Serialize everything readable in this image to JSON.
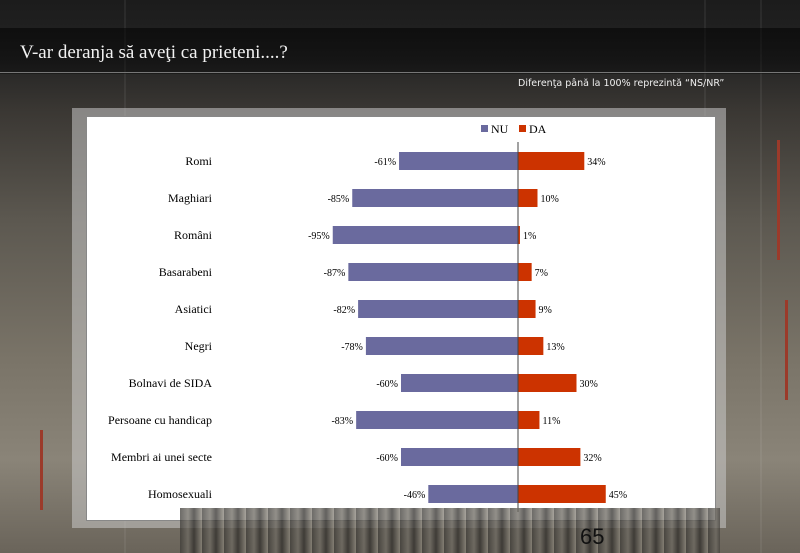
{
  "slide": {
    "title": "V-ar deranja să aveţi ca prieteni....?",
    "note": "Diferenţa până la 100% reprezintă  “NS/NR”",
    "page_number": "65"
  },
  "colors": {
    "nu": "#6a6a9e",
    "da": "#cc3300"
  },
  "chart_data": {
    "type": "bar",
    "orientation": "horizontal-diverging",
    "categories": [
      "Romi",
      "Maghiari",
      "Români",
      "Basarabeni",
      "Asiatici",
      "Negri",
      "Bolnavi de SIDA",
      "Persoane cu handicap",
      "Membri ai unei secte",
      "Homosexuali"
    ],
    "series": [
      {
        "name": "NU",
        "values": [
          -61,
          -85,
          -95,
          -87,
          -82,
          -78,
          -60,
          -83,
          -60,
          -46
        ]
      },
      {
        "name": "DA",
        "values": [
          34,
          10,
          1,
          7,
          9,
          13,
          30,
          11,
          32,
          45
        ]
      }
    ],
    "data_labels": {
      "NU": [
        "-61%",
        "-85%",
        "-95%",
        "-87%",
        "-82%",
        "-78%",
        "-60%",
        "-83%",
        "-60%",
        "-46%"
      ],
      "DA": [
        "34%",
        "10%",
        "1%",
        "7%",
        "9%",
        "13%",
        "30%",
        "11%",
        "32%",
        "45%"
      ]
    },
    "legend_position": "top",
    "grid": false
  }
}
